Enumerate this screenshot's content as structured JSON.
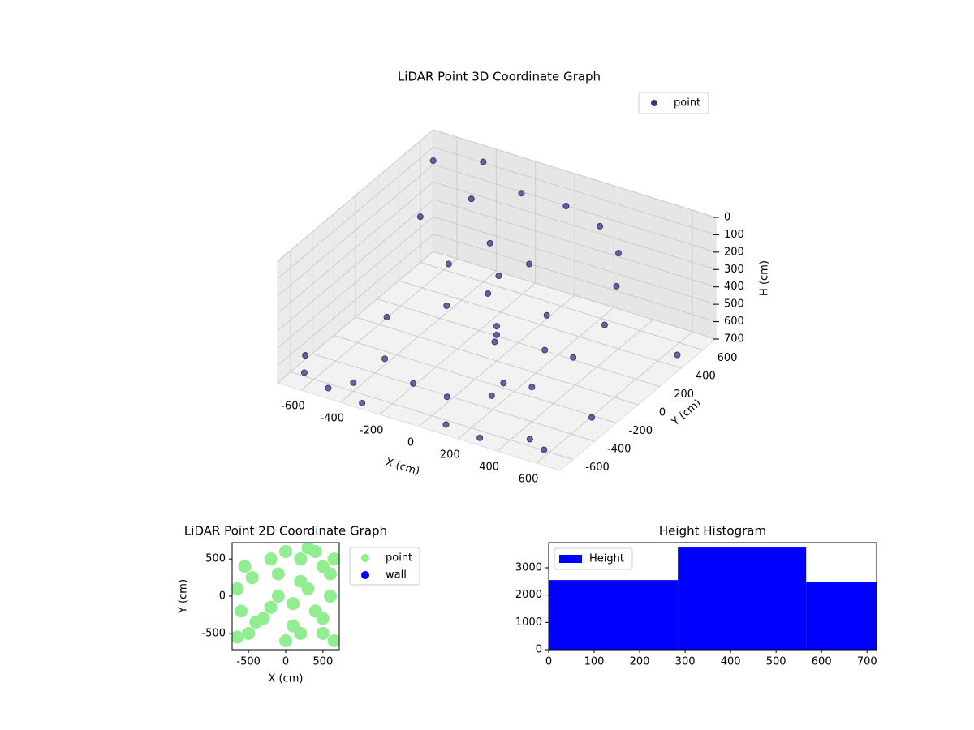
{
  "chart_data": [
    {
      "type": "scatter3d",
      "title": "LiDAR Point 3D Coordinate Graph",
      "xlabel": "X (cm)",
      "ylabel": "Y (cm)",
      "zlabel": "H (cm)",
      "xlim": [
        -720,
        720
      ],
      "ylim": [
        -720,
        720
      ],
      "zlim": [
        700,
        0
      ],
      "xticks": [
        -600,
        -400,
        -200,
        0,
        200,
        400,
        600
      ],
      "yticks": [
        -600,
        -400,
        -200,
        0,
        200,
        400,
        600
      ],
      "zticks": [
        0,
        100,
        200,
        300,
        400,
        500,
        600,
        700
      ],
      "grid": true,
      "legend": "upper right",
      "series": [
        {
          "name": "point",
          "color": "#46307e",
          "x": [
            -500,
            -350,
            -150,
            50,
            250,
            400,
            500,
            550,
            500,
            400,
            250,
            50,
            -150,
            -350,
            -450,
            -300,
            -200,
            -100,
            0,
            100,
            200,
            300,
            -200,
            0,
            200,
            -650,
            -700,
            -500,
            -600,
            -400,
            600,
            650,
            700,
            -400,
            -300,
            100,
            300,
            500,
            0,
            -100
          ],
          "y": [
            200,
            400,
            500,
            550,
            500,
            400,
            200,
            0,
            -200,
            -400,
            -500,
            -550,
            -500,
            -400,
            -200,
            100,
            -100,
            200,
            0,
            -200,
            100,
            -100,
            300,
            300,
            -300,
            -600,
            -500,
            -650,
            500,
            600,
            -650,
            -300,
            400,
            -600,
            -700,
            -650,
            -700,
            -600,
            0,
            100
          ],
          "z": [
            150,
            100,
            50,
            80,
            100,
            150,
            200,
            300,
            400,
            500,
            550,
            600,
            620,
            600,
            500,
            300,
            400,
            350,
            500,
            450,
            420,
            480,
            250,
            300,
            600,
            680,
            650,
            690,
            20,
            10,
            660,
            640,
            630,
            650,
            680,
            690,
            670,
            660,
            550,
            400
          ]
        }
      ]
    },
    {
      "type": "scatter",
      "title": "LiDAR Point 2D Coordinate Graph",
      "xlabel": "X (cm)",
      "ylabel": "Y (cm)",
      "xlim": [
        -720,
        720
      ],
      "ylim": [
        -720,
        720
      ],
      "xticks": [
        -500,
        0,
        500
      ],
      "yticks": [
        -500,
        0,
        500
      ],
      "legend": "outside right",
      "series": [
        {
          "name": "point",
          "color": "#90ee90",
          "x": [
            -650,
            -600,
            -550,
            -500,
            -450,
            -650,
            -300,
            -200,
            -100,
            0,
            100,
            200,
            300,
            400,
            500,
            600,
            650,
            0,
            200,
            400,
            600,
            100,
            300,
            500,
            650,
            -100,
            -400,
            -200,
            200,
            500
          ],
          "y": [
            100,
            -200,
            400,
            -500,
            250,
            -550,
            -300,
            500,
            0,
            600,
            -400,
            200,
            650,
            -200,
            400,
            0,
            -600,
            -600,
            -500,
            600,
            300,
            -100,
            100,
            -500,
            500,
            300,
            -350,
            -150,
            500,
            -300
          ]
        },
        {
          "name": "wall",
          "color": "#0000ff",
          "x": [],
          "y": []
        }
      ]
    },
    {
      "type": "histogram",
      "title": "Height Histogram",
      "xlim": [
        0,
        721
      ],
      "ylim": [
        0,
        3920
      ],
      "xticks": [
        0,
        100,
        200,
        300,
        400,
        500,
        600,
        700
      ],
      "yticks": [
        0,
        1000,
        2000,
        3000
      ],
      "legend": "upper left",
      "series": [
        {
          "name": "Height",
          "color": "#0000ff",
          "bins": [
            0,
            284,
            566,
            721
          ],
          "counts": [
            2550,
            3740,
            2490
          ]
        }
      ]
    }
  ]
}
